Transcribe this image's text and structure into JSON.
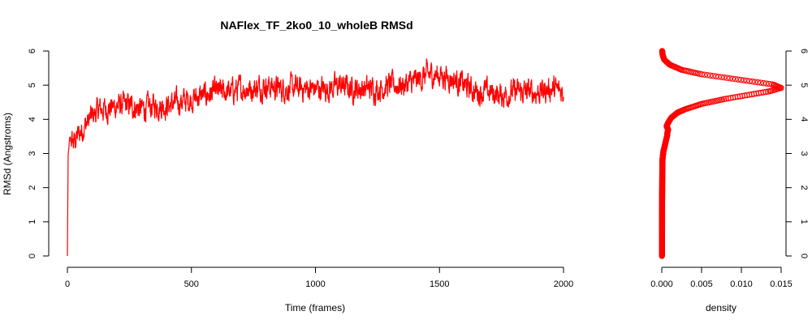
{
  "chart_data": [
    {
      "type": "line",
      "title": "NAFlex_TF_2ko0_10_wholeB RMSd",
      "xlabel": "Time (frames)",
      "ylabel": "RMSd (Angstroms)",
      "xlim": [
        0,
        2000
      ],
      "ylim": [
        0,
        6
      ],
      "x_ticks": [
        "0",
        "500",
        "1000",
        "1500",
        "2000"
      ],
      "y_ticks": [
        "0",
        "1",
        "2",
        "3",
        "4",
        "5",
        "6"
      ],
      "grid": false,
      "series": [
        {
          "color": "#ff0000",
          "x": [
            0,
            3,
            8,
            15,
            25,
            40,
            60,
            80,
            100,
            130,
            160,
            200,
            250,
            300,
            350,
            400,
            450,
            500,
            550,
            600,
            650,
            700,
            750,
            800,
            850,
            900,
            950,
            1000,
            1050,
            1100,
            1150,
            1200,
            1250,
            1300,
            1350,
            1400,
            1450,
            1500,
            1550,
            1600,
            1650,
            1700,
            1750,
            1800,
            1850,
            1900,
            1950,
            2000
          ],
          "y": [
            0.0,
            2.9,
            3.3,
            3.4,
            3.3,
            3.5,
            3.7,
            3.9,
            4.1,
            4.3,
            4.3,
            4.4,
            4.4,
            4.3,
            4.4,
            4.4,
            4.5,
            4.6,
            4.7,
            4.8,
            4.8,
            4.9,
            4.9,
            5.0,
            4.9,
            4.9,
            4.9,
            4.9,
            4.9,
            5.0,
            4.9,
            4.9,
            4.9,
            5.0,
            5.0,
            5.1,
            5.3,
            5.3,
            5.2,
            5.0,
            4.8,
            4.8,
            4.7,
            4.8,
            4.8,
            4.8,
            4.9,
            4.8
          ]
        }
      ]
    },
    {
      "type": "scatter",
      "xlabel": "density",
      "ylabel": "",
      "xlim": [
        0,
        0.015
      ],
      "ylim": [
        0,
        6
      ],
      "x_ticks": [
        "0.000",
        "0.005",
        "0.010",
        "0.015"
      ],
      "y_ticks": [
        "0",
        "1",
        "2",
        "3",
        "4",
        "5",
        "6"
      ],
      "y_axis_side": "right",
      "grid": false,
      "series": [
        {
          "color": "#ff0000",
          "marker": "open-circle",
          "x": [
            2e-05,
            3e-05,
            4e-05,
            4e-05,
            5e-05,
            6e-05,
            8e-05,
            0.0001,
            0.00015,
            0.0002,
            0.0003,
            0.0004,
            0.0005,
            0.0006,
            0.0007,
            0.0007,
            0.0008,
            0.0006,
            0.0008,
            0.0012,
            0.002,
            0.003,
            0.005,
            0.008,
            0.011,
            0.0135,
            0.015,
            0.014,
            0.011,
            0.008,
            0.005,
            0.0025,
            0.001,
            0.0003,
            0.0001,
            5e-05
          ],
          "y": [
            0.0,
            0.5,
            1.0,
            1.5,
            2.0,
            2.4,
            2.7,
            2.85,
            2.95,
            3.05,
            3.15,
            3.25,
            3.35,
            3.45,
            3.55,
            3.6,
            3.7,
            3.8,
            3.9,
            4.05,
            4.2,
            4.3,
            4.45,
            4.6,
            4.72,
            4.82,
            4.92,
            5.02,
            5.12,
            5.22,
            5.32,
            5.45,
            5.6,
            5.75,
            5.9,
            6.0
          ]
        }
      ]
    }
  ]
}
